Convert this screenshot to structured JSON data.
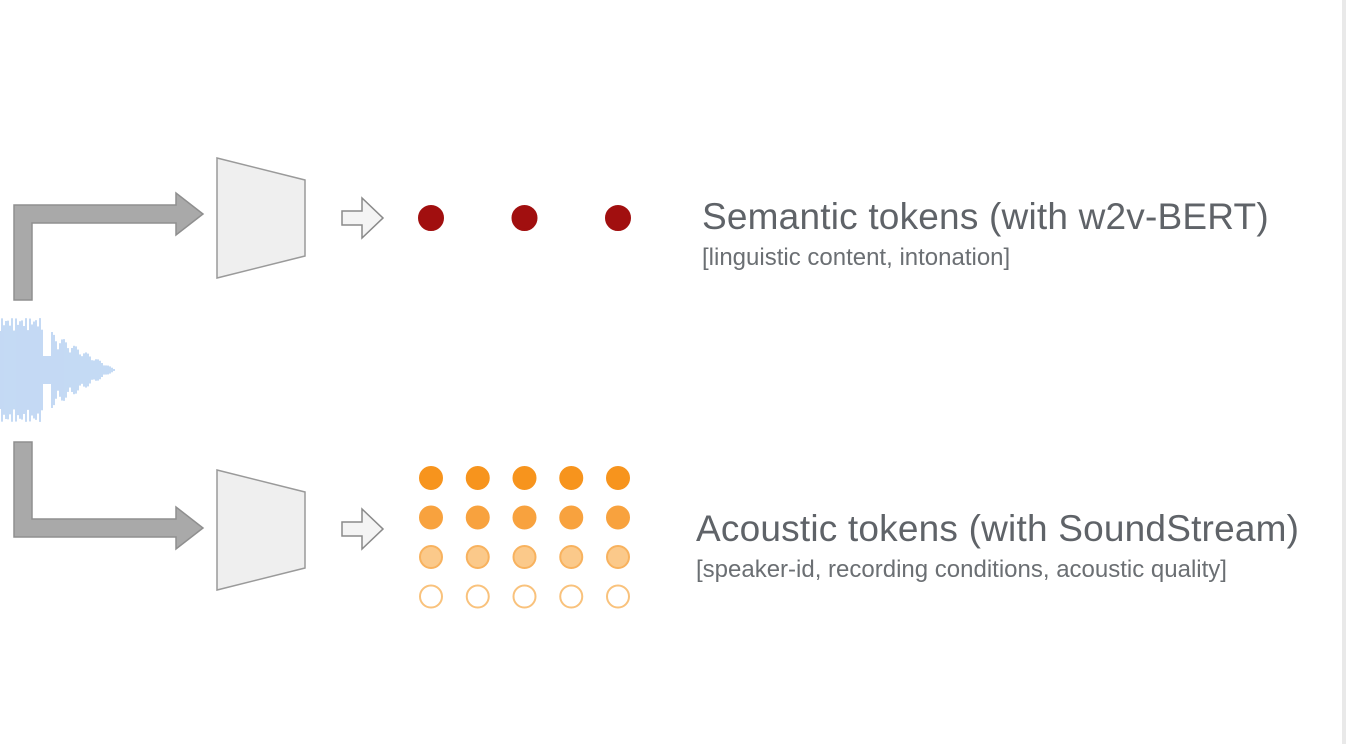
{
  "semantic": {
    "title": "Semantic tokens (with w2v-BERT)",
    "subtitle": "[linguistic content, intonation]",
    "token_count": 3,
    "token_color": "#a10f0f"
  },
  "acoustic": {
    "title": "Acoustic tokens (with SoundStream)",
    "subtitle": "[speaker-id, recording conditions, acoustic quality]",
    "columns": 5,
    "rows": [
      {
        "fill": "#f7941d",
        "stroke": "#f7941d"
      },
      {
        "fill": "#f8a23e",
        "stroke": "#f8a23e"
      },
      {
        "fill": "#fbc98a",
        "stroke": "#f8b25e"
      },
      {
        "fill": "#ffffff",
        "stroke": "#f9c27c"
      }
    ]
  },
  "colors": {
    "arrow_gray": "#a9a9a9",
    "encoder_fill": "#efefef",
    "encoder_stroke": "#9a9a9a",
    "waveform": "#9cc0ee"
  }
}
